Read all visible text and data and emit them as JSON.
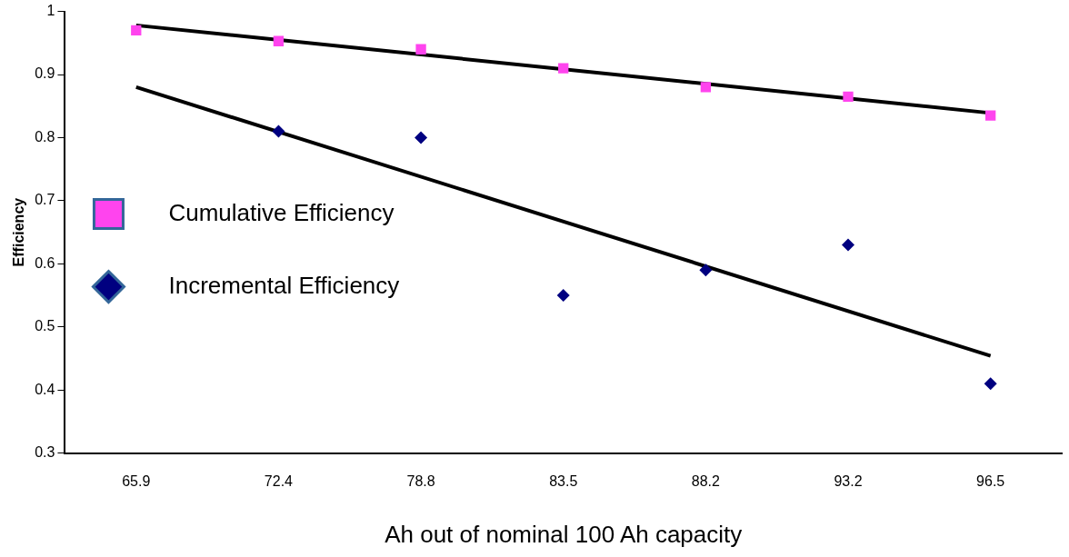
{
  "chart_data": {
    "type": "scatter",
    "xlabel": "Ah out of nominal 100 Ah capacity",
    "ylabel": "Efficiency",
    "categories": [
      "65.9",
      "72.4",
      "78.8",
      "83.5",
      "88.2",
      "93.2",
      "96.5"
    ],
    "series": [
      {
        "name": "Cumulative Efficiency",
        "type": "scatter",
        "marker": "square",
        "color": "#ff44ee",
        "values": [
          0.97,
          0.953,
          0.94,
          0.91,
          0.88,
          0.865,
          0.835
        ]
      },
      {
        "name": "Incremental Efficiency",
        "type": "scatter",
        "marker": "diamond",
        "color": "#000080",
        "values": [
          null,
          0.81,
          0.8,
          0.55,
          0.59,
          0.63,
          0.41
        ]
      },
      {
        "type": "line",
        "color": "#000000",
        "x": [
          "65.9",
          "96.5"
        ],
        "values": [
          0.978,
          0.839
        ]
      },
      {
        "type": "line",
        "color": "#000000",
        "x": [
          "65.9",
          "96.5"
        ],
        "values": [
          0.88,
          0.454
        ]
      }
    ],
    "ylim": [
      0.3,
      1
    ],
    "yticks": [
      0.3,
      0.4,
      0.5,
      0.6,
      0.7,
      0.8,
      0.9,
      1
    ],
    "grid": false,
    "legend": "center left"
  }
}
